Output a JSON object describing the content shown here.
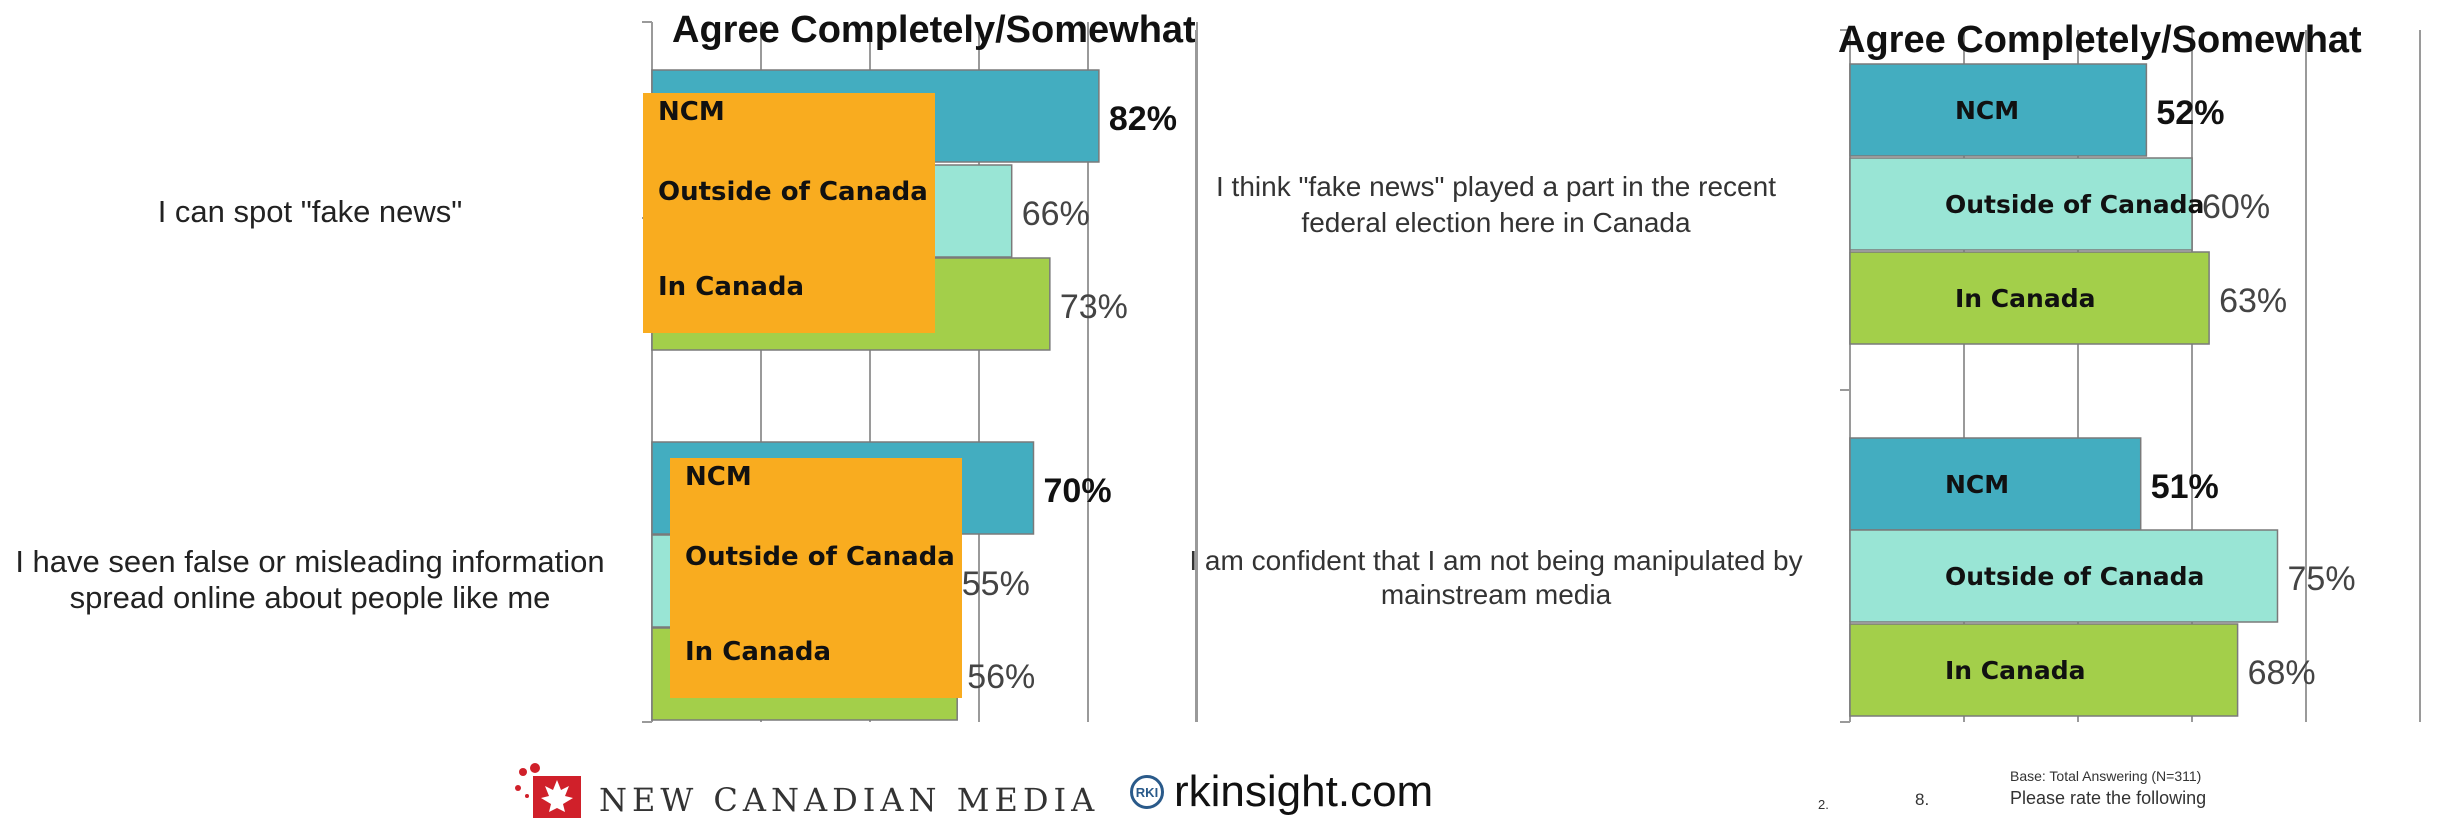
{
  "chart_data": [
    {
      "type": "bar",
      "orientation": "horizontal",
      "title": "Agree Completely/Somewhat",
      "categories": [
        "I can spot \"fake news\"",
        "I have seen false or misleading information spread online about people like me"
      ],
      "series": [
        {
          "name": "NCM",
          "color": "#43adc0",
          "values": [
            82,
            70
          ]
        },
        {
          "name": "Outside of Canada",
          "color": "#99e5d5",
          "values": [
            66,
            55
          ]
        },
        {
          "name": "In Canada",
          "color": "#a3cf4a",
          "values": [
            73,
            56
          ]
        }
      ],
      "data_labels": [
        [
          "82%",
          "66%",
          "73%"
        ],
        [
          "70%",
          "55%",
          "56%"
        ]
      ],
      "grid": true,
      "legend": "overlay"
    },
    {
      "type": "bar",
      "orientation": "horizontal",
      "title": "Agree Completely/Somewhat",
      "categories": [
        "I think \"fake news\" played a part in the recent federal election here in Canada",
        "I am confident that I am not being manipulated by mainstream media"
      ],
      "series": [
        {
          "name": "NCM",
          "color": "#43adc0",
          "values": [
            52,
            51
          ]
        },
        {
          "name": "Outside of Canada",
          "color": "#99e5d5",
          "values": [
            60,
            75
          ]
        },
        {
          "name": "In Canada",
          "color": "#a3cf4a",
          "values": [
            63,
            68
          ]
        }
      ],
      "data_labels": [
        [
          "52%",
          "60%",
          "63%"
        ],
        [
          "51%",
          "75%",
          "68%"
        ]
      ],
      "grid": true,
      "legend": "in-bar"
    }
  ],
  "left_labels": {
    "q1": "I can spot \"fake news\"",
    "q2_line1": "I have seen false or misleading information",
    "q2_line2": "spread online about people like me"
  },
  "right_labels": {
    "q1_line1": "I think \"fake news\" played a part in the recent",
    "q1_line2": "federal election here in Canada",
    "q2_line1": "I am confident that I am not being manipulated by",
    "q2_line2": "mainstream media"
  },
  "overlay_boxes": {
    "top": [
      "NCM",
      "Outside of Canada",
      "In Canada"
    ],
    "bottom": [
      "NCM",
      "Outside of Canada",
      "In Canada"
    ]
  },
  "colors": {
    "overlay": "#f9ac1f"
  },
  "footer": {
    "ncm_logo_text": "NEW CANADIAN MEDIA",
    "rki_badge": "RKI",
    "rki_text": "rkinsight.com",
    "base_note": "Base: Total Answering (N=311)",
    "number_a": "2.",
    "number_b": "8.",
    "prompt": "Please rate the following"
  }
}
